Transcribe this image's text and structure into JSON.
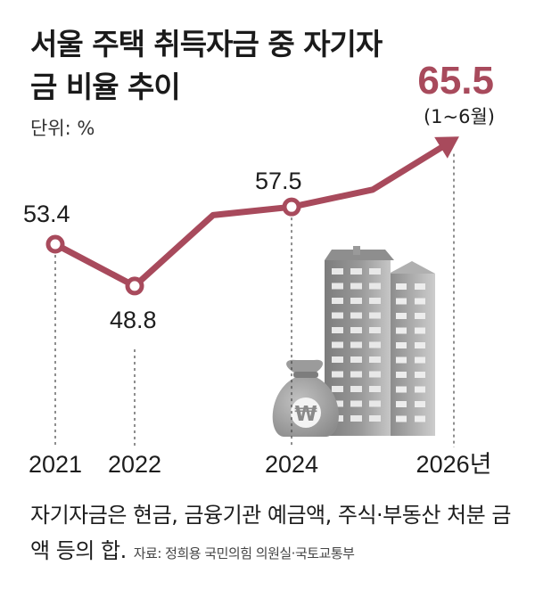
{
  "header": {
    "title": "서울 주택 취득자금 중 자기자금 비율 추이",
    "unit": "단위: %"
  },
  "chart_data": {
    "type": "line",
    "title": "서울 주택 취득자금 중 자기자금 비율 추이",
    "unit": "%",
    "x": [
      "2021",
      "2022",
      "2024",
      "2026년"
    ],
    "labeled_points": [
      {
        "x": "2021",
        "value": 53.4,
        "label": "53.4"
      },
      {
        "x": "2022",
        "value": 48.8,
        "label": "48.8"
      },
      {
        "x": "2024",
        "value": 57.5,
        "label": "57.5"
      },
      {
        "x": "2026년",
        "value": 65.5,
        "label": "65.5",
        "note": "(1~6월)"
      }
    ],
    "highlight": {
      "value": "65.5",
      "note": "(1~6월)"
    },
    "colors": {
      "line": "#a84a5c",
      "highlight": "#a84a5c"
    }
  },
  "footnote": {
    "text": "자기자금은 현금, 금융기관 예금액, 주식·부동산 처분 금액 등의 합.",
    "source": "자료: 정희용 국민의힘 의원실·국토교통부"
  },
  "illustration": {
    "money_bag_symbol": "₩",
    "icons": [
      "money-bag-icon",
      "apartment-building-icon"
    ]
  }
}
